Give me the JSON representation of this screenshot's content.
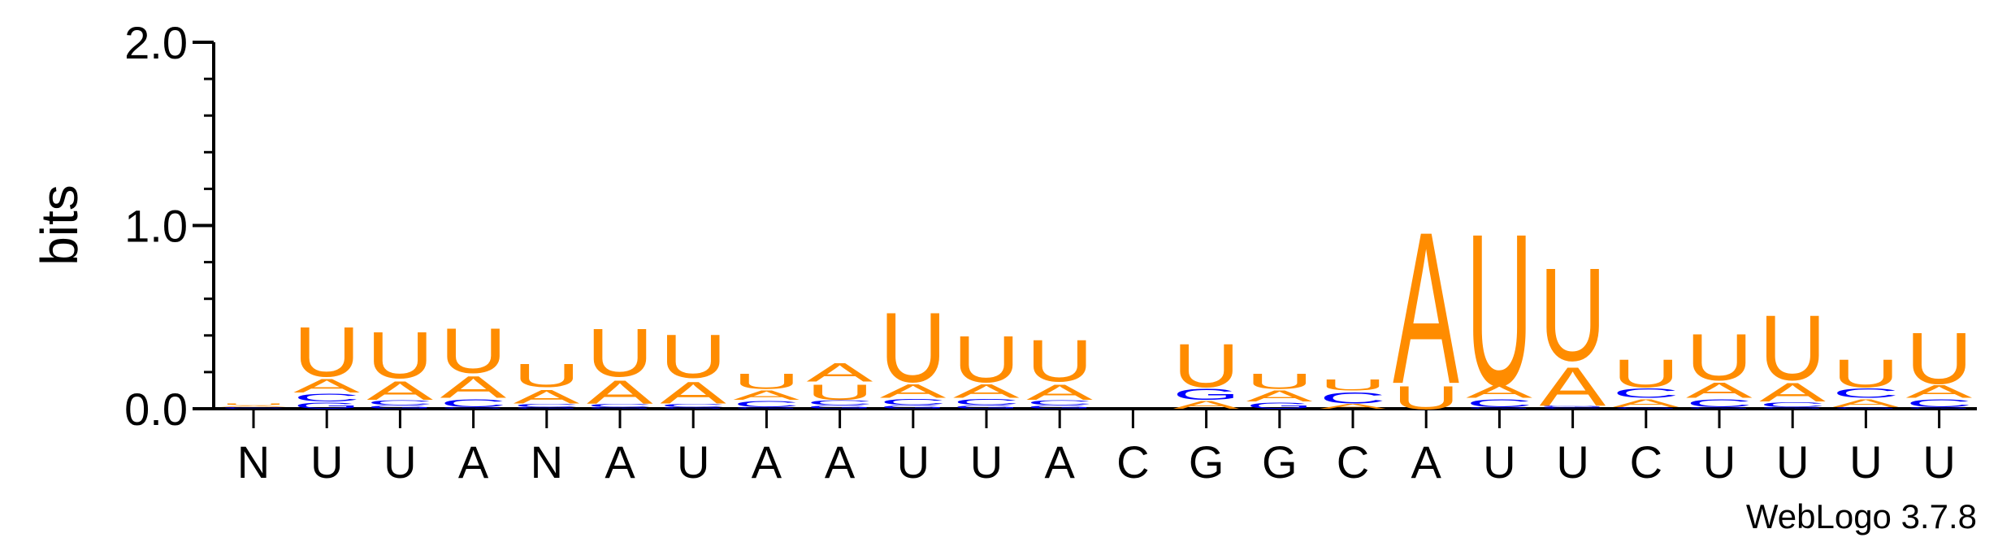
{
  "chart_data": {
    "type": "sequence-logo",
    "ylabel": "bits",
    "ylim": [
      0,
      2.0
    ],
    "yticks": [
      "0.0",
      "1.0",
      "2.0"
    ],
    "credit": "WebLogo 3.7.8",
    "colors": {
      "A": "#ff8c00",
      "U": "#ff8c00",
      "C": "#0000ff",
      "G": "#0000ff",
      "N": "#ff8c00"
    },
    "positions": [
      {
        "label": "N",
        "stack": [
          {
            "l": "C",
            "h": 0.01
          },
          {
            "l": "A",
            "h": 0.01
          },
          {
            "l": "U",
            "h": 0.01
          }
        ]
      },
      {
        "label": "U",
        "stack": [
          {
            "l": "G",
            "h": 0.04
          },
          {
            "l": "C",
            "h": 0.05
          },
          {
            "l": "A",
            "h": 0.09
          },
          {
            "l": "U",
            "h": 0.32
          }
        ]
      },
      {
        "label": "U",
        "stack": [
          {
            "l": "G",
            "h": 0.02
          },
          {
            "l": "C",
            "h": 0.03
          },
          {
            "l": "A",
            "h": 0.12
          },
          {
            "l": "U",
            "h": 0.3
          }
        ]
      },
      {
        "label": "A",
        "stack": [
          {
            "l": "G",
            "h": 0.01
          },
          {
            "l": "C",
            "h": 0.05
          },
          {
            "l": "A",
            "h": 0.14
          },
          {
            "l": "U",
            "h": 0.29
          }
        ]
      },
      {
        "label": "N",
        "stack": [
          {
            "l": "G",
            "h": 0.01
          },
          {
            "l": "C",
            "h": 0.02
          },
          {
            "l": "A",
            "h": 0.09
          },
          {
            "l": "U",
            "h": 0.15
          }
        ]
      },
      {
        "label": "A",
        "stack": [
          {
            "l": "G",
            "h": 0.01
          },
          {
            "l": "C",
            "h": 0.02
          },
          {
            "l": "A",
            "h": 0.15
          },
          {
            "l": "U",
            "h": 0.31
          }
        ]
      },
      {
        "label": "U",
        "stack": [
          {
            "l": "G",
            "h": 0.01
          },
          {
            "l": "C",
            "h": 0.02
          },
          {
            "l": "A",
            "h": 0.14
          },
          {
            "l": "U",
            "h": 0.28
          }
        ]
      },
      {
        "label": "A",
        "stack": [
          {
            "l": "G",
            "h": 0.01
          },
          {
            "l": "C",
            "h": 0.04
          },
          {
            "l": "A",
            "h": 0.06
          },
          {
            "l": "U",
            "h": 0.1
          }
        ]
      },
      {
        "label": "A",
        "stack": [
          {
            "l": "G",
            "h": 0.02
          },
          {
            "l": "C",
            "h": 0.03
          },
          {
            "l": "U",
            "h": 0.1
          },
          {
            "l": "A",
            "h": 0.12
          }
        ]
      },
      {
        "label": "U",
        "stack": [
          {
            "l": "G",
            "h": 0.02
          },
          {
            "l": "C",
            "h": 0.04
          },
          {
            "l": "A",
            "h": 0.09
          },
          {
            "l": "U",
            "h": 0.45
          }
        ]
      },
      {
        "label": "U",
        "stack": [
          {
            "l": "G",
            "h": 0.02
          },
          {
            "l": "C",
            "h": 0.04
          },
          {
            "l": "A",
            "h": 0.09
          },
          {
            "l": "U",
            "h": 0.3
          }
        ]
      },
      {
        "label": "A",
        "stack": [
          {
            "l": "G",
            "h": 0.02
          },
          {
            "l": "C",
            "h": 0.03
          },
          {
            "l": "A",
            "h": 0.1
          },
          {
            "l": "U",
            "h": 0.27
          }
        ]
      },
      {
        "label": "C",
        "stack": []
      },
      {
        "label": "G",
        "stack": [
          {
            "l": "A",
            "h": 0.05
          },
          {
            "l": "G",
            "h": 0.07
          },
          {
            "l": "U",
            "h": 0.28
          }
        ]
      },
      {
        "label": "G",
        "stack": [
          {
            "l": "G",
            "h": 0.04
          },
          {
            "l": "A",
            "h": 0.07
          },
          {
            "l": "U",
            "h": 0.1
          }
        ]
      },
      {
        "label": "C",
        "stack": [
          {
            "l": "A",
            "h": 0.03
          },
          {
            "l": "C",
            "h": 0.07
          },
          {
            "l": "U",
            "h": 0.07
          }
        ]
      },
      {
        "label": "A",
        "stack": [
          {
            "l": "U",
            "h": 0.15
          },
          {
            "l": "A",
            "h": 0.98
          }
        ]
      },
      {
        "label": "U",
        "stack": [
          {
            "l": "G",
            "h": 0.01
          },
          {
            "l": "C",
            "h": 0.05
          },
          {
            "l": "A",
            "h": 0.08
          },
          {
            "l": "U",
            "h": 0.98
          }
        ]
      },
      {
        "label": "U",
        "stack": [
          {
            "l": "C",
            "h": 0.01
          },
          {
            "l": "G",
            "h": 0.01
          },
          {
            "l": "A",
            "h": 0.25
          },
          {
            "l": "U",
            "h": 0.6
          }
        ]
      },
      {
        "label": "C",
        "stack": [
          {
            "l": "G",
            "h": 0.01
          },
          {
            "l": "A",
            "h": 0.05
          },
          {
            "l": "C",
            "h": 0.06
          },
          {
            "l": "U",
            "h": 0.18
          }
        ]
      },
      {
        "label": "U",
        "stack": [
          {
            "l": "G",
            "h": 0.01
          },
          {
            "l": "C",
            "h": 0.05
          },
          {
            "l": "A",
            "h": 0.1
          },
          {
            "l": "U",
            "h": 0.3
          }
        ]
      },
      {
        "label": "U",
        "stack": [
          {
            "l": "G",
            "h": 0.01
          },
          {
            "l": "C",
            "h": 0.03
          },
          {
            "l": "A",
            "h": 0.12
          },
          {
            "l": "U",
            "h": 0.42
          }
        ]
      },
      {
        "label": "U",
        "stack": [
          {
            "l": "G",
            "h": 0.01
          },
          {
            "l": "A",
            "h": 0.05
          },
          {
            "l": "C",
            "h": 0.06
          },
          {
            "l": "U",
            "h": 0.18
          }
        ]
      },
      {
        "label": "U",
        "stack": [
          {
            "l": "G",
            "h": 0.01
          },
          {
            "l": "C",
            "h": 0.05
          },
          {
            "l": "A",
            "h": 0.08
          },
          {
            "l": "U",
            "h": 0.33
          }
        ]
      }
    ]
  }
}
